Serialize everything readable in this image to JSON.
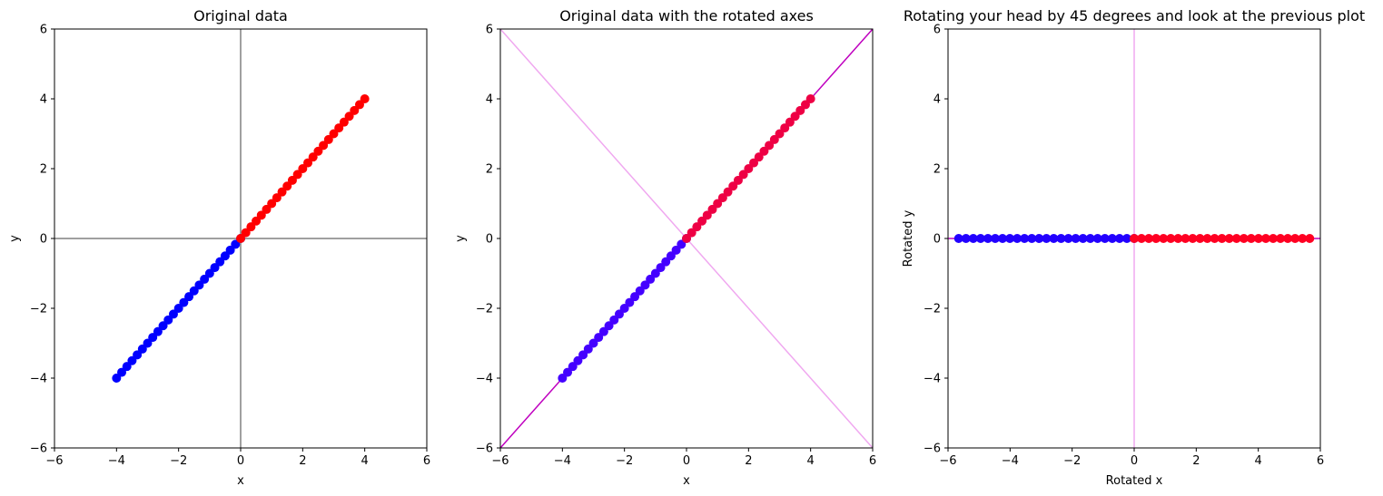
{
  "chart_data": [
    {
      "type": "scatter",
      "title": "Original data",
      "xlabel": "x",
      "ylabel": "y",
      "xlim": [
        -6,
        6
      ],
      "ylim": [
        -6,
        6
      ],
      "xticks": [
        -6,
        -4,
        -2,
        0,
        2,
        4,
        6
      ],
      "yticks": [
        -6,
        -4,
        -2,
        0,
        2,
        4,
        6
      ],
      "tick_labels": [
        "−6",
        "−4",
        "−2",
        "0",
        "2",
        "4",
        "6"
      ],
      "grid": false,
      "reference_lines": [
        {
          "orientation": "horizontal",
          "value": 0,
          "color": "#808080"
        },
        {
          "orientation": "vertical",
          "value": 0,
          "color": "#808080"
        }
      ],
      "series": [
        {
          "color": "#0000ff",
          "x_range": [
            -4,
            0
          ],
          "y_equals_x": true,
          "count": 25
        },
        {
          "color": "#ff0000",
          "x_range": [
            0,
            4
          ],
          "y_equals_x": true,
          "count": 25
        }
      ]
    },
    {
      "type": "scatter",
      "title": "Original data with the rotated axes",
      "xlabel": "x",
      "ylabel": "y",
      "xlim": [
        -6,
        6
      ],
      "ylim": [
        -6,
        6
      ],
      "xticks": [
        -6,
        -4,
        -2,
        0,
        2,
        4,
        6
      ],
      "yticks": [
        -6,
        -4,
        -2,
        0,
        2,
        4,
        6
      ],
      "tick_labels": [
        "−6",
        "−4",
        "−2",
        "0",
        "2",
        "4",
        "6"
      ],
      "grid": false,
      "reference_lines": [
        {
          "orientation": "diagonal",
          "slope": 1,
          "color": "#bf00bf"
        },
        {
          "orientation": "diagonal",
          "slope": -1,
          "color": "#f0a8f0"
        }
      ],
      "series": [
        {
          "color": "#4400ff",
          "x_range": [
            -4,
            0
          ],
          "y_equals_x": true,
          "count": 25
        },
        {
          "color": "#ee0044",
          "x_range": [
            0,
            4
          ],
          "y_equals_x": true,
          "count": 25
        }
      ]
    },
    {
      "type": "scatter",
      "title": "Rotating your head by 45 degrees and look at the previous plot",
      "xlabel": "Rotated x",
      "ylabel": "Rotated y",
      "xlim": [
        -6,
        6
      ],
      "ylim": [
        -6,
        6
      ],
      "xticks": [
        -6,
        -4,
        -2,
        0,
        2,
        4,
        6
      ],
      "yticks": [
        -6,
        -4,
        -2,
        0,
        2,
        4,
        6
      ],
      "tick_labels": [
        "−6",
        "−4",
        "−2",
        "0",
        "2",
        "4",
        "6"
      ],
      "grid": false,
      "reference_lines": [
        {
          "orientation": "horizontal",
          "value": 0,
          "color": "#bf00bf"
        },
        {
          "orientation": "vertical",
          "value": 0,
          "color": "#f0a8f0"
        }
      ],
      "series": [
        {
          "color": "#2200ff",
          "x_range": [
            -5.657,
            0
          ],
          "y_constant": 0,
          "count": 25
        },
        {
          "color": "#ff0022",
          "x_range": [
            0,
            5.657
          ],
          "y_constant": 0,
          "count": 25
        }
      ]
    }
  ]
}
